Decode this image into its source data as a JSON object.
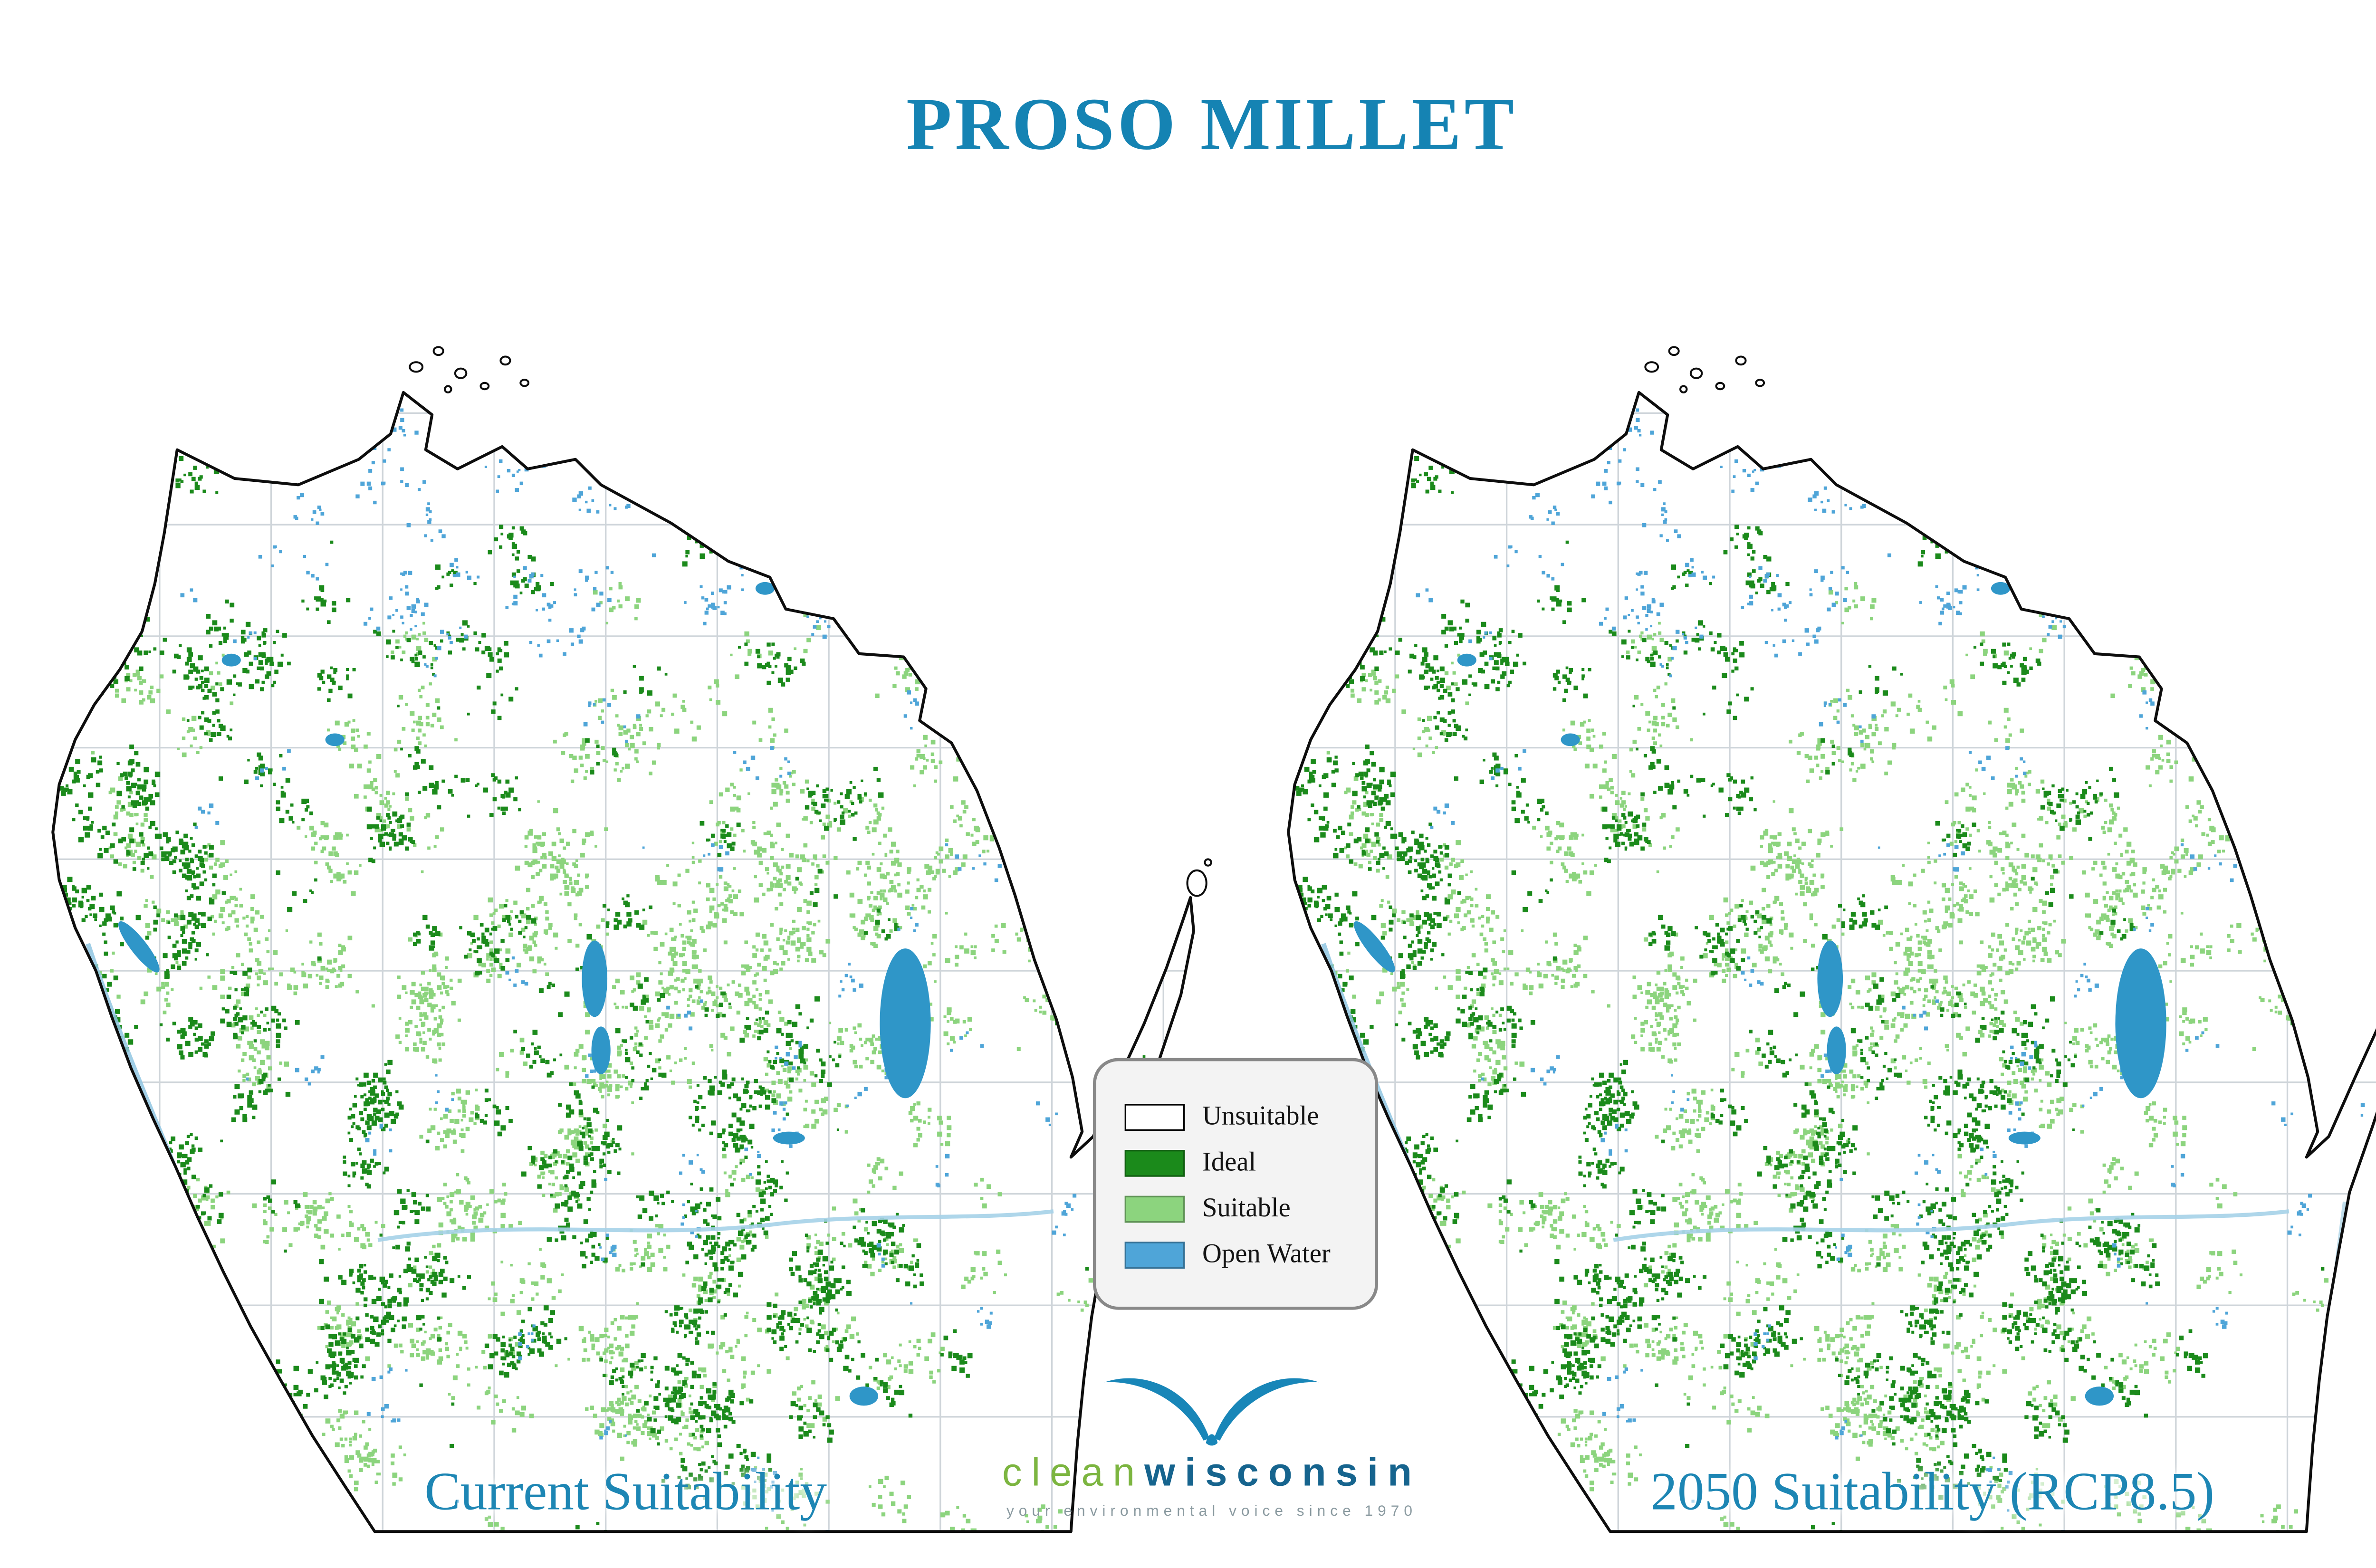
{
  "title": "PROSO MILLET",
  "maps": {
    "left": {
      "caption": "Current Suitability"
    },
    "right": {
      "caption": "2050 Suitability (RCP8.5)"
    }
  },
  "legend": {
    "items": [
      {
        "label": "Unsuitable",
        "color": "#ffffff",
        "border": "#000000"
      },
      {
        "label": "Ideal",
        "color": "#1b8a1b"
      },
      {
        "label": "Suitable",
        "color": "#8cd47e"
      },
      {
        "label": "Open Water",
        "color": "#4fa5d8"
      }
    ]
  },
  "logo": {
    "brand_left": "clean",
    "brand_right": "wisconsin",
    "tagline": "your environmental voice since 1970"
  },
  "colors": {
    "title": "#1583b3",
    "caption": "#1d86b4",
    "outline": "#0d0d0d",
    "county_line": "#c7ced4",
    "lake": "#2f96c8",
    "river": "#8fc6e2",
    "legend_bg": "#f3f3f3",
    "swoosh": "#1886b8"
  }
}
